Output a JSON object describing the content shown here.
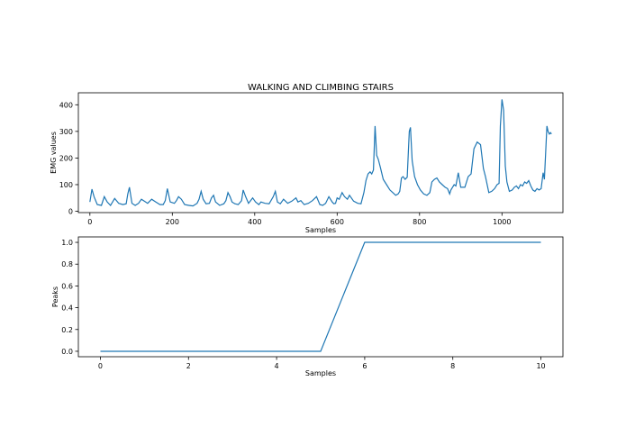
{
  "chart_data": [
    {
      "type": "line",
      "title": "WALKING AND CLIMBING STAIRS",
      "xlabel": "Samples",
      "ylabel": "EMG values",
      "xlim": [
        -28,
        1148
      ],
      "ylim": [
        -5,
        445
      ],
      "xticks": [
        0,
        200,
        400,
        600,
        800,
        1000
      ],
      "yticks": [
        0,
        100,
        200,
        300,
        400
      ],
      "grid": false,
      "series": [
        {
          "color": "#1f77b4",
          "x": [
            0,
            5,
            10,
            18,
            28,
            35,
            42,
            50,
            60,
            70,
            80,
            88,
            92,
            96,
            102,
            110,
            118,
            125,
            132,
            140,
            150,
            160,
            170,
            178,
            183,
            188,
            195,
            205,
            210,
            215,
            222,
            230,
            240,
            250,
            260,
            265,
            270,
            275,
            282,
            290,
            295,
            300,
            305,
            315,
            325,
            330,
            335,
            340,
            345,
            352,
            360,
            368,
            372,
            378,
            385,
            390,
            395,
            402,
            410,
            415,
            425,
            435,
            445,
            450,
            455,
            462,
            470,
            480,
            490,
            500,
            505,
            512,
            520,
            530,
            540,
            550,
            558,
            565,
            572,
            580,
            588,
            592,
            596,
            600,
            605,
            612,
            618,
            625,
            630,
            640,
            650,
            658,
            665,
            670,
            675,
            680,
            684,
            688,
            692,
            696,
            700,
            705,
            712,
            720,
            728,
            735,
            742,
            748,
            752,
            756,
            760,
            765,
            770,
            775,
            778,
            782,
            788,
            795,
            802,
            810,
            818,
            825,
            830,
            836,
            842,
            848,
            855,
            862,
            868,
            873,
            876,
            880,
            884,
            888,
            894,
            900,
            910,
            918,
            925,
            932,
            940,
            948,
            955,
            960,
            968,
            975,
            982,
            988,
            993,
            996,
            1000,
            1004,
            1008,
            1012,
            1018,
            1025,
            1030,
            1035,
            1040,
            1045,
            1050,
            1055,
            1060,
            1065,
            1070,
            1075,
            1080,
            1085,
            1090,
            1095,
            1100,
            1103,
            1106,
            1109,
            1112,
            1115,
            1118,
            1120
          ],
          "y": [
            35,
            83,
            55,
            25,
            22,
            55,
            35,
            22,
            48,
            30,
            25,
            28,
            65,
            90,
            30,
            22,
            30,
            45,
            38,
            30,
            45,
            35,
            25,
            25,
            40,
            85,
            35,
            30,
            40,
            55,
            45,
            25,
            22,
            20,
            30,
            45,
            75,
            45,
            28,
            30,
            50,
            60,
            35,
            22,
            28,
            40,
            70,
            55,
            35,
            28,
            25,
            40,
            80,
            55,
            30,
            40,
            50,
            35,
            25,
            35,
            30,
            28,
            55,
            75,
            35,
            28,
            45,
            30,
            38,
            50,
            35,
            40,
            25,
            30,
            40,
            55,
            25,
            22,
            30,
            55,
            35,
            28,
            30,
            50,
            45,
            70,
            55,
            45,
            60,
            38,
            30,
            28,
            70,
            115,
            140,
            148,
            140,
            155,
            320,
            210,
            195,
            165,
            120,
            100,
            80,
            70,
            60,
            65,
            75,
            125,
            130,
            120,
            128,
            300,
            315,
            190,
            130,
            100,
            80,
            65,
            60,
            70,
            110,
            120,
            125,
            110,
            100,
            90,
            85,
            65,
            80,
            90,
            100,
            95,
            145,
            90,
            90,
            130,
            140,
            235,
            260,
            250,
            160,
            130,
            70,
            75,
            85,
            100,
            105,
            320,
            420,
            380,
            170,
            110,
            75,
            80,
            90,
            95,
            85,
            100,
            95,
            110,
            105,
            115,
            95,
            80,
            75,
            85,
            80,
            85,
            145,
            120,
            220,
            320,
            300,
            290,
            295,
            290
          ]
        }
      ]
    },
    {
      "type": "line",
      "title": "",
      "xlabel": "Samples",
      "ylabel": "Peaks",
      "xlim": [
        -0.5,
        10.5
      ],
      "ylim": [
        -0.05,
        1.05
      ],
      "xticks": [
        0,
        2,
        4,
        6,
        8,
        10
      ],
      "yticks": [
        "0.0",
        "0.2",
        "0.4",
        "0.6",
        "0.8",
        "1.0"
      ],
      "grid": false,
      "series": [
        {
          "color": "#1f77b4",
          "x": [
            0,
            1,
            2,
            3,
            4,
            5,
            6,
            7,
            8,
            9,
            10
          ],
          "y": [
            0,
            0,
            0,
            0,
            0,
            0,
            1,
            1,
            1,
            1,
            1
          ]
        }
      ]
    }
  ]
}
